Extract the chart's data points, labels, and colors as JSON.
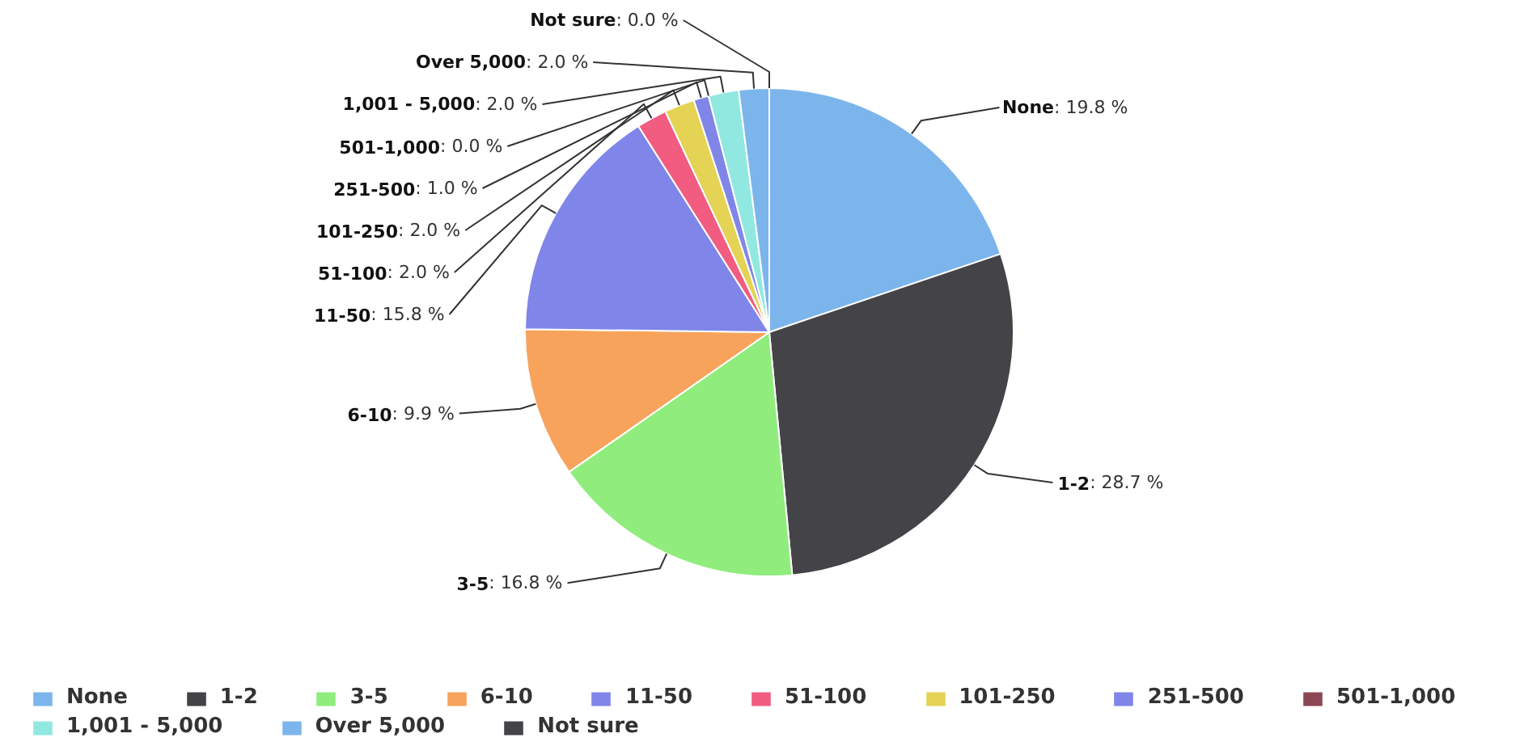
{
  "chart_data": {
    "type": "pie",
    "categories": [
      "None",
      "1-2",
      "3-5",
      "6-10",
      "11-50",
      "51-100",
      "101-250",
      "251-500",
      "501-1,000",
      "1,001 - 5,000",
      "Over 5,000",
      "Not sure"
    ],
    "values": [
      19.8,
      28.7,
      16.8,
      9.9,
      15.8,
      2.0,
      2.0,
      1.0,
      0.0,
      2.0,
      2.0,
      0.0
    ],
    "value_labels": [
      ": 19.8 %",
      ": 28.7 %",
      ": 16.8 %",
      ": 9.9 %",
      ": 15.8 %",
      ": 2.0 %",
      ": 2.0 %",
      ": 1.0 %",
      ": 0.0 %",
      ": 2.0 %",
      ": 2.0 %",
      ": 0.0 %"
    ],
    "colors": [
      "#7cb5ec",
      "#434348",
      "#90ed7d",
      "#f7a35c",
      "#8085e9",
      "#f15c80",
      "#e4d354",
      "#8085e8",
      "#8d4653",
      "#91e8e1",
      "#7cb5ec",
      "#434348"
    ],
    "legend": "bottom"
  }
}
